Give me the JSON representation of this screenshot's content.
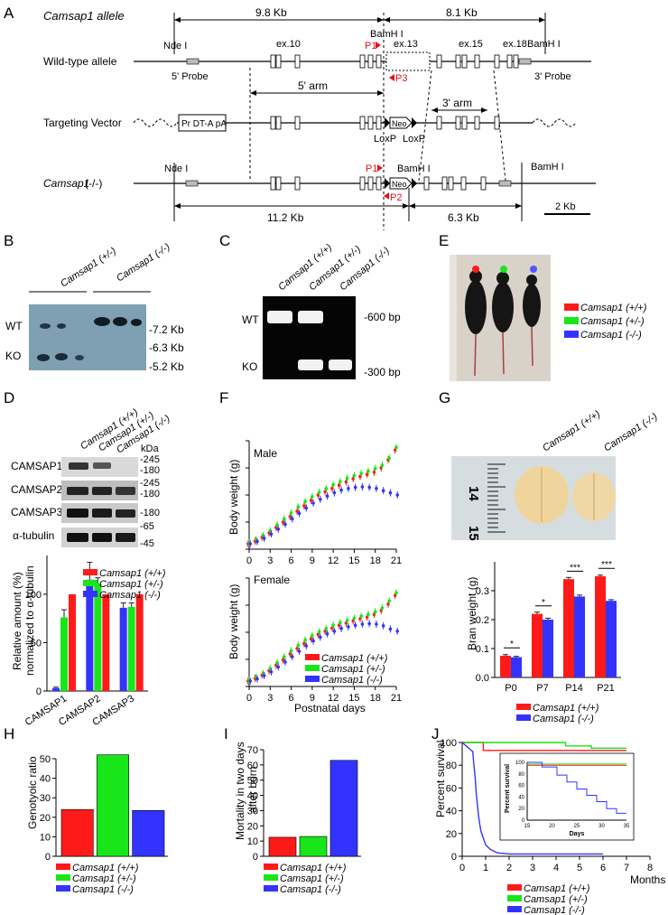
{
  "panels": {
    "A": "A",
    "B": "B",
    "C": "C",
    "D": "D",
    "E": "E",
    "F": "F",
    "G": "G",
    "H": "H",
    "I": "I",
    "J": "J"
  },
  "a": {
    "allele_title": "Camsap1 allele",
    "dist_left": "9.8 Kb",
    "dist_right": "8.1 Kb",
    "row_wt": "Wild-type allele",
    "row_tv": "Targeting Vector",
    "row_ko_gene": "Camsap1",
    "row_ko_suffix": " (-/-)",
    "ndei": "Nde I",
    "bamhi": "BamH I",
    "ex10": "ex.10",
    "ex13": "ex.13",
    "ex15": "ex.15",
    "ex18": "ex.18",
    "p1": "P1",
    "p2": "P2",
    "p3": "P3",
    "probe5": "5' Probe",
    "probe3": "3' Probe",
    "arm5": "5' arm",
    "arm3": "3' arm",
    "dta": "Pr DT-A pA",
    "neo": "Neo",
    "loxp": "LoxP",
    "ko_left": "11.2 Kb",
    "ko_right": "6.3 Kb",
    "scale": "2 Kb"
  },
  "b": {
    "g1": "Camsap1 (+/-)",
    "g2": "Camsap1 (-/-)",
    "wt": "WT",
    "ko": "KO",
    "m1": "-7.2 Kb",
    "m2": "-6.3 Kb",
    "m3": "-5.2 Kb"
  },
  "c": {
    "g1": "Camsap1 (+/+)",
    "g2": "Camsap1 (+/-)",
    "g3": "Camsap1 (-/-)",
    "wt": "WT",
    "ko": "KO",
    "m1": "-600 bp",
    "m2": "-300 bp"
  },
  "e": {
    "l1": "Camsap1 (+/+)",
    "l2": "Camsap1 (+/-)",
    "l3": "Camsap1 (-/-)"
  },
  "d": {
    "g1": "Camsap1 (+/+)",
    "g2": "Camsap1 (+/-)",
    "g3": "Camsap1 (-/-)",
    "kda": "kDa",
    "r1": "CAMSAP1",
    "r2": "CAMSAP2",
    "r3": "CAMSAP3",
    "r4": "α-tubulin",
    "k1": "-245",
    "k2": "-180",
    "k3": "-245",
    "k4": "-180",
    "k5": "-180",
    "k6": "-65",
    "k7": "-45",
    "ylabel1": "Relative amount (%)",
    "ylabel2": "normalized to α-tubulin",
    "ticks": [
      "0",
      "50",
      "100"
    ],
    "legend": [
      "Camsap1 (+/+)",
      "Camsap1 (+/-)",
      "Camsap1 (-/-)"
    ]
  },
  "f": {
    "male": "Male",
    "female": "Female",
    "ylabel": "Body weight (g)",
    "xlabel": "Postnatal days",
    "xticks": [
      "0",
      "3",
      "6",
      "9",
      "12",
      "15",
      "18",
      "21"
    ],
    "legend": [
      "Camsap1 (+/+)",
      "Camsap1 (+/-)",
      "Camsap1 (-/-)"
    ]
  },
  "g": {
    "g1": "Camsap1 (+/+)",
    "g2": "Camsap1 (-/-)",
    "r14": "14",
    "r15": "15",
    "ylabel": "Bran weight (g)",
    "yticks": [
      "0.0",
      "0.1",
      "0.2",
      "0.3"
    ],
    "cats": [
      "P0",
      "P7",
      "P14",
      "P21"
    ],
    "sig": [
      "*",
      "*",
      "***",
      "***"
    ],
    "legend": [
      "Camsap1 (+/+)",
      "Camsap1 (-/-)"
    ]
  },
  "h": {
    "ylabel": "Genotyoic ratio",
    "yticks": [
      "0",
      "10",
      "20",
      "30",
      "40",
      "50"
    ],
    "legend": [
      "Camsap1 (+/+)",
      "Camsap1 (+/-)",
      "Camsap1 (-/-)"
    ]
  },
  "i": {
    "ylabel1": "Mortality in two days",
    "ylabel2": "after born",
    "yticks": [
      "0",
      "10",
      "20",
      "30",
      "40",
      "50",
      "60",
      "70"
    ],
    "legend": [
      "Camsap1 (+/+)",
      "Camsap1 (+/-)",
      "Camsap1 (-/-)"
    ]
  },
  "j": {
    "ylabel": "Percent survival",
    "xlabel": "Months",
    "yticks": [
      "0",
      "20",
      "40",
      "60",
      "80",
      "100"
    ],
    "xticks": [
      "0",
      "1",
      "2",
      "3",
      "4",
      "5",
      "6",
      "7",
      "8"
    ],
    "inset_ylabel": "Percent survival",
    "inset_xlabel": "Days",
    "inset_yticks": [
      "0",
      "20",
      "40",
      "60",
      "80",
      "100"
    ],
    "inset_xticks": [
      "15",
      "20",
      "25",
      "30",
      "35"
    ],
    "legend": [
      "Camsap1 (+/+)",
      "Camsap1 (+/-)",
      "Camsap1 (-/-)"
    ]
  },
  "colors": {
    "wt": "#ff1a1a",
    "het": "#19e619",
    "ko": "#3333ff",
    "p1": "#e0141e"
  },
  "chart_data": [
    {
      "type": "bar",
      "panel": "D",
      "categories": [
        "CAMSAP1",
        "CAMSAP2",
        "CAMSAP3"
      ],
      "series": [
        {
          "name": "Camsap1 (+/+)",
          "values": [
            100,
            100,
            100
          ]
        },
        {
          "name": "Camsap1 (+/-)",
          "values": [
            76,
            111,
            87
          ]
        },
        {
          "name": "Camsap1 (-/-)",
          "values": [
            3,
            115,
            86
          ]
        }
      ],
      "errors": [
        [
          0,
          0,
          0
        ],
        [
          8,
          6,
          4
        ],
        [
          1,
          18,
          5
        ]
      ],
      "ylim": [
        0,
        140
      ]
    },
    {
      "type": "line",
      "panel": "F",
      "subtitle": "Male",
      "x": [
        0,
        1,
        2,
        3,
        4,
        5,
        6,
        7,
        8,
        9,
        10,
        11,
        12,
        13,
        14,
        15,
        16,
        17,
        18,
        19,
        20,
        21
      ],
      "series": [
        {
          "name": "Camsap1 (+/+)",
          "values": [
            1,
            1.5,
            2.2,
            3,
            4,
            5,
            6,
            7,
            8,
            9,
            10,
            10.6,
            11.2,
            11.8,
            12.4,
            13,
            13.4,
            13.8,
            14.2,
            15,
            16.5,
            18.3
          ]
        },
        {
          "name": "Camsap1 (+/-)",
          "values": [
            1.1,
            1.7,
            2.5,
            3.4,
            4.5,
            5.6,
            6.7,
            7.8,
            8.8,
            9.7,
            10.5,
            11.2,
            11.9,
            12.5,
            13.1,
            13.6,
            14,
            14.4,
            14.9,
            15.5,
            16.8,
            18.8
          ]
        },
        {
          "name": "Camsap1 (-/-)",
          "values": [
            1,
            1.4,
            2,
            2.8,
            3.7,
            4.6,
            5.6,
            6.6,
            7.6,
            8.5,
            9.2,
            9.8,
            10.4,
            10.9,
            11.2,
            11.4,
            11.5,
            11.4,
            11.2,
            10.8,
            10.4,
            10
          ]
        }
      ],
      "ylim": [
        0,
        20
      ],
      "xlim": [
        0,
        21
      ]
    },
    {
      "type": "line",
      "panel": "F",
      "subtitle": "Female",
      "x": [
        0,
        1,
        2,
        3,
        4,
        5,
        6,
        7,
        8,
        9,
        10,
        11,
        12,
        13,
        14,
        15,
        16,
        17,
        18,
        19,
        20,
        21
      ],
      "series": [
        {
          "name": "Camsap1 (+/+)",
          "values": [
            1,
            1.5,
            2.1,
            2.9,
            3.9,
            4.9,
            6,
            7,
            7.9,
            8.8,
            9.6,
            10.2,
            10.8,
            11.3,
            11.7,
            12.1,
            12.5,
            12.8,
            13.3,
            14,
            15.2,
            16.8
          ]
        },
        {
          "name": "Camsap1 (+/-)",
          "values": [
            1.1,
            1.7,
            2.4,
            3.3,
            4.4,
            5.5,
            6.6,
            7.6,
            8.6,
            9.4,
            10.1,
            10.7,
            11.3,
            11.8,
            12.2,
            12.6,
            13,
            13.3,
            13.8,
            14.5,
            15.8,
            17.3
          ]
        },
        {
          "name": "Camsap1 (-/-)",
          "values": [
            1,
            1.4,
            2,
            2.7,
            3.6,
            4.5,
            5.5,
            6.5,
            7.5,
            8.4,
            9.1,
            9.7,
            10.2,
            10.7,
            11,
            11.3,
            11.5,
            11.6,
            11.5,
            11.2,
            10.6,
            10.2
          ]
        }
      ],
      "ylim": [
        0,
        20
      ],
      "xlim": [
        0,
        21
      ]
    },
    {
      "type": "bar",
      "panel": "G",
      "categories": [
        "P0",
        "P7",
        "P14",
        "P21"
      ],
      "series": [
        {
          "name": "Camsap1 (+/+)",
          "values": [
            0.075,
            0.22,
            0.34,
            0.35
          ]
        },
        {
          "name": "Camsap1 (-/-)",
          "values": [
            0.07,
            0.2,
            0.28,
            0.265
          ]
        }
      ],
      "errors": [
        [
          0.004,
          0.006,
          0.006,
          0.004
        ],
        [
          0.003,
          0.005,
          0.005,
          0.004
        ]
      ],
      "ylim": [
        0,
        0.4
      ]
    },
    {
      "type": "bar",
      "panel": "H",
      "categories": [
        "Camsap1 (+/+)",
        "Camsap1 (+/-)",
        "Camsap1 (-/-)"
      ],
      "values": [
        24,
        52,
        23.5
      ],
      "ylim": [
        0,
        55
      ]
    },
    {
      "type": "bar",
      "panel": "I",
      "categories": [
        "Camsap1 (+/+)",
        "Camsap1 (+/-)",
        "Camsap1 (-/-)"
      ],
      "values": [
        12.5,
        13,
        63
      ],
      "ylim": [
        0,
        70
      ]
    },
    {
      "type": "line",
      "panel": "J",
      "xlim": [
        0,
        8
      ],
      "ylim": [
        0,
        100
      ],
      "series": [
        {
          "name": "Camsap1 (+/+)",
          "x": [
            0,
            0.9,
            0.9,
            7
          ],
          "values": [
            100,
            100,
            93,
            93
          ]
        },
        {
          "name": "Camsap1 (+/-)",
          "x": [
            0,
            4.4,
            4.4,
            5.5,
            5.5,
            7
          ],
          "values": [
            100,
            100,
            97,
            97,
            95,
            95
          ]
        },
        {
          "name": "Camsap1 (-/-)",
          "x": [
            0,
            0.45,
            0.5,
            0.55,
            0.6,
            0.65,
            0.7,
            0.75,
            0.8,
            0.9,
            1,
            1.2,
            1.5,
            2,
            6
          ],
          "values": [
            100,
            92,
            80,
            70,
            55,
            45,
            35,
            28,
            22,
            16,
            10,
            6,
            3,
            2,
            2
          ]
        }
      ]
    },
    {
      "type": "line",
      "panel": "J-inset",
      "xlim": [
        15,
        35
      ],
      "ylim": [
        0,
        100
      ],
      "series": [
        {
          "name": "Camsap1 (+/+)",
          "x": [
            15,
            35
          ],
          "values": [
            95,
            95
          ]
        },
        {
          "name": "Camsap1 (+/-)",
          "x": [
            15,
            35
          ],
          "values": [
            97,
            97
          ]
        },
        {
          "name": "Camsap1 (-/-)",
          "x": [
            15,
            18,
            18,
            21,
            21,
            23,
            23,
            25,
            25,
            27,
            27,
            29,
            29,
            31,
            31,
            33,
            33,
            35
          ],
          "values": [
            100,
            100,
            92,
            92,
            78,
            78,
            66,
            66,
            54,
            54,
            43,
            43,
            32,
            32,
            20,
            20,
            12,
            12
          ]
        }
      ]
    }
  ]
}
